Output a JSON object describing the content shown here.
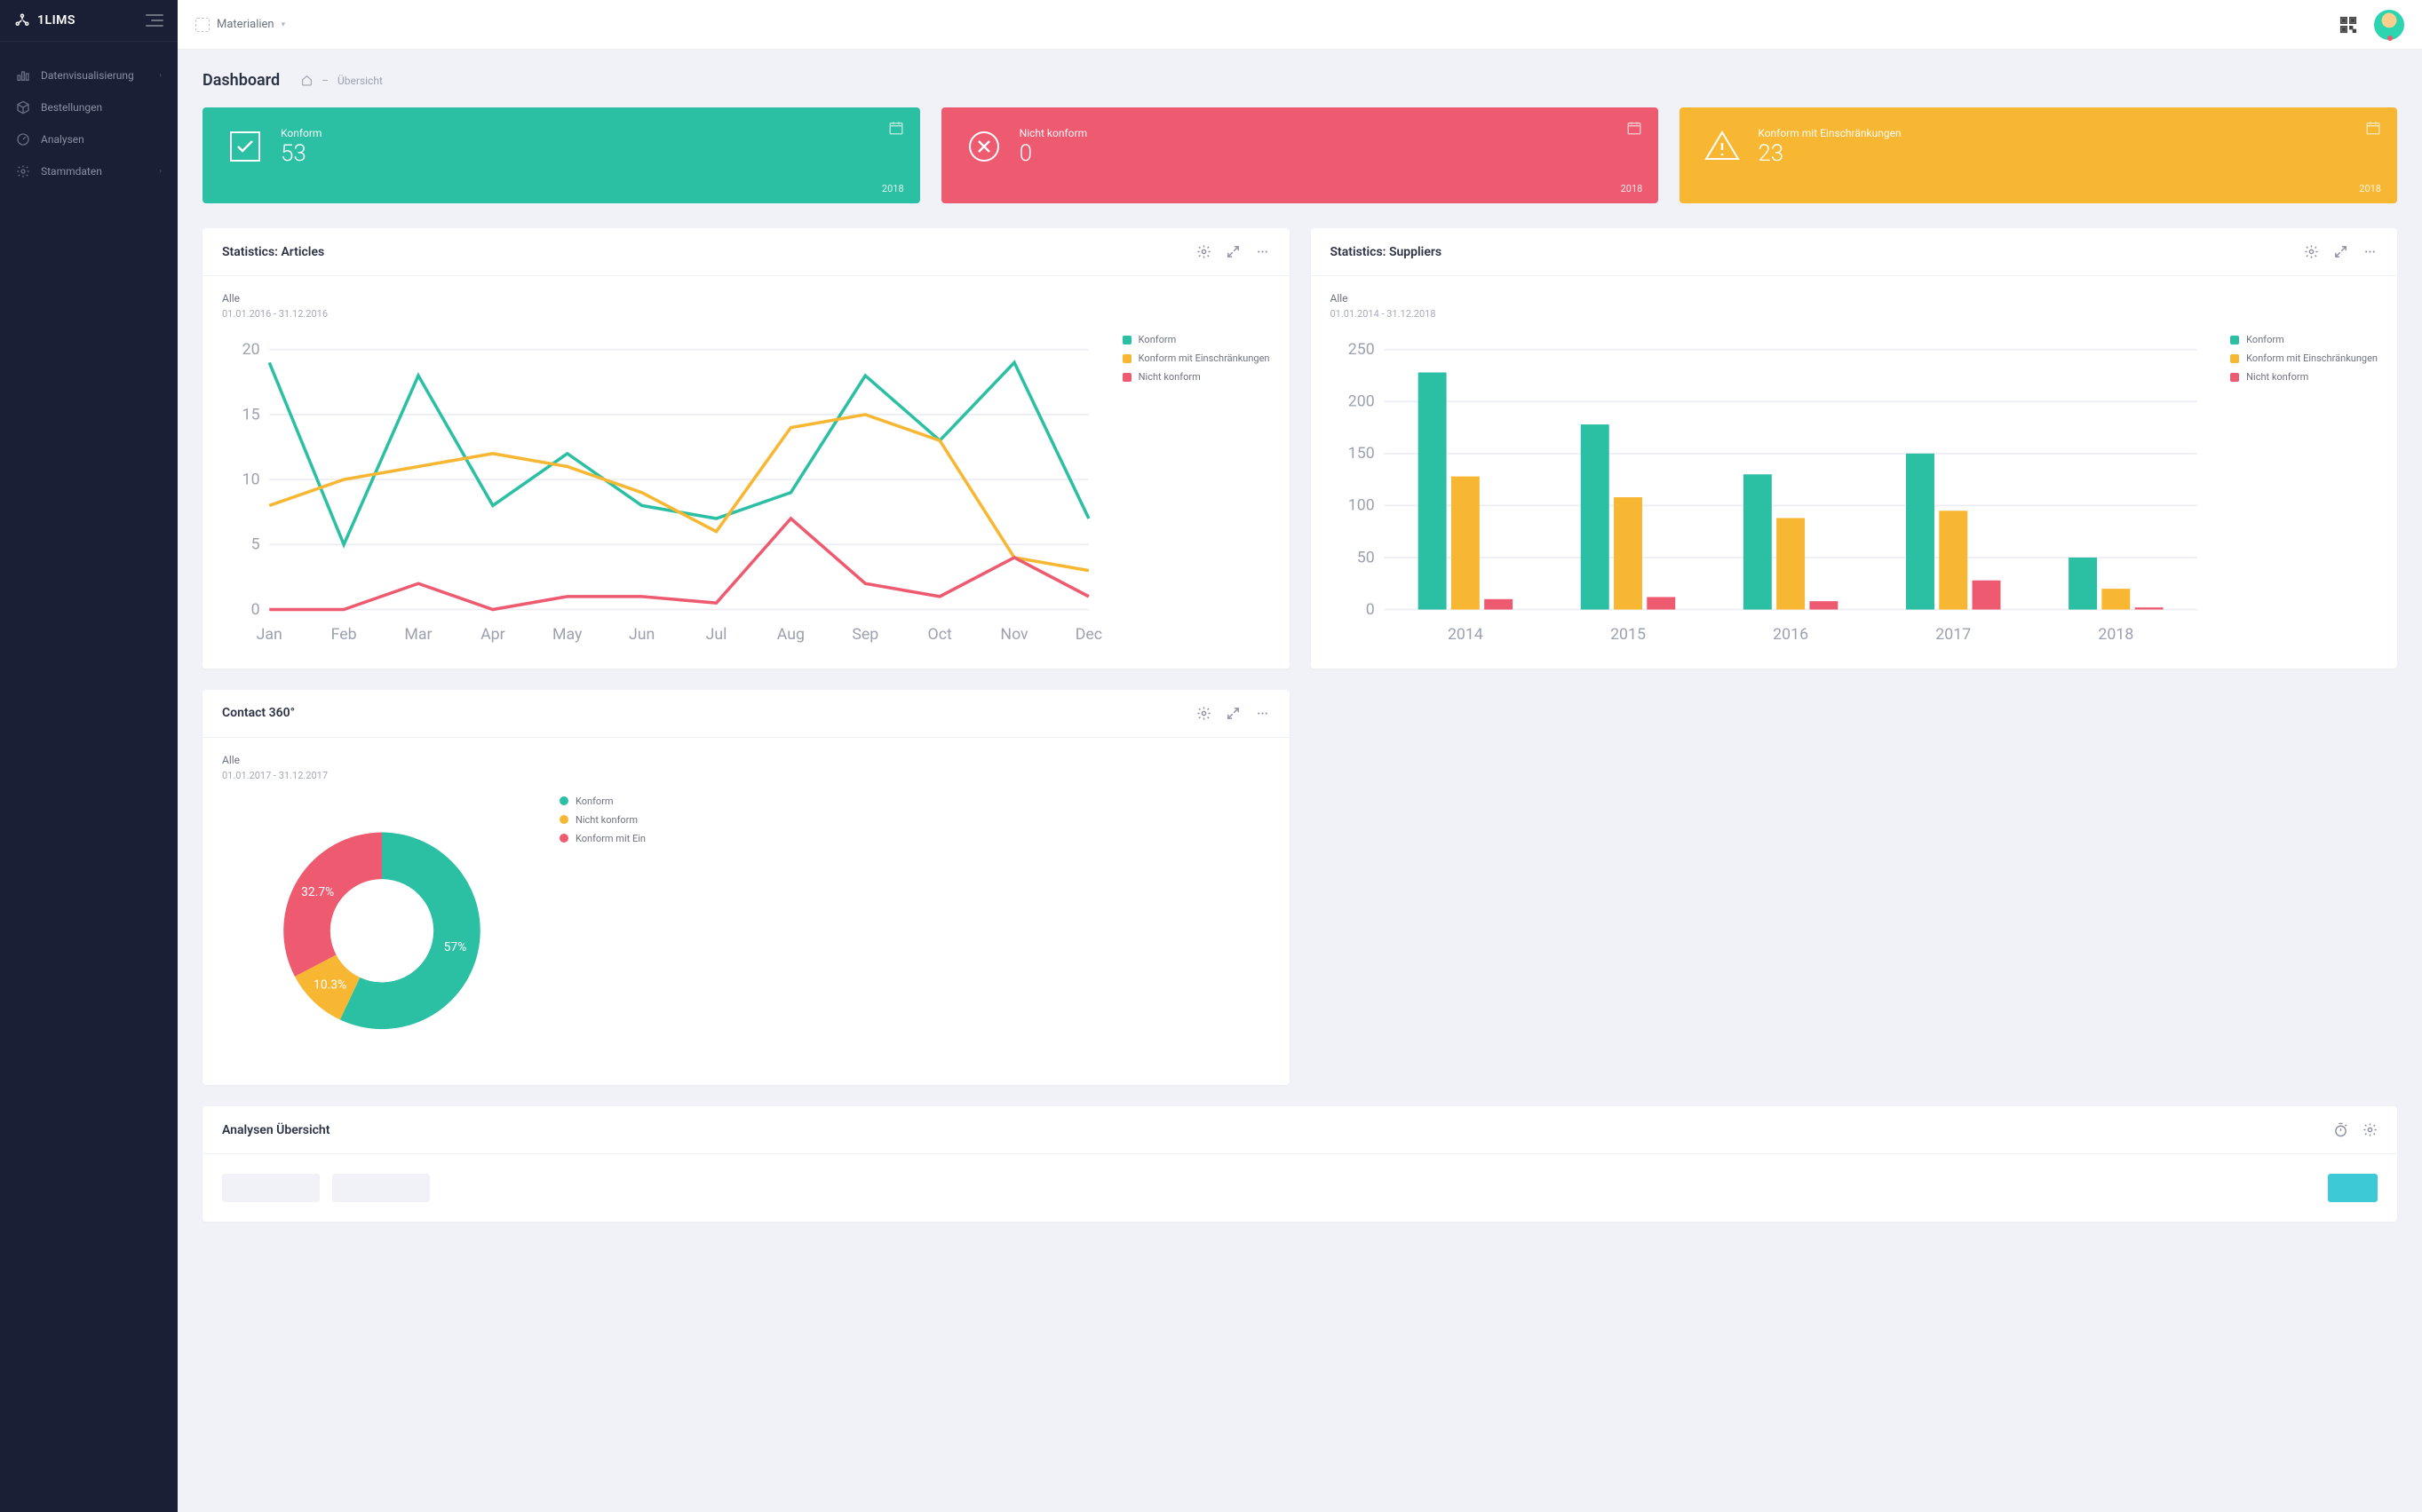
{
  "brand": "1LIMS",
  "topbar": {
    "material_label": "Materialien"
  },
  "sidebar": {
    "items": [
      {
        "label": "Datenvisualisierung",
        "icon": "chart"
      },
      {
        "label": "Bestellungen",
        "icon": "box"
      },
      {
        "label": "Analysen",
        "icon": "gauge"
      },
      {
        "label": "Stammdaten",
        "icon": "gear"
      }
    ]
  },
  "page": {
    "title": "Dashboard",
    "breadcrumb_current": "Übersicht",
    "breadcrumb_sep": "–"
  },
  "colors": {
    "green": "#2bbfa3",
    "red": "#ee5a6f",
    "yellow": "#f7b733",
    "grid": "#eceef3",
    "axis": "#9ca1b0"
  },
  "stats": [
    {
      "label": "Konform",
      "value": "53",
      "year": "2018",
      "color": "#2bbfa3",
      "icon": "check"
    },
    {
      "label": "Nicht konform",
      "value": "0",
      "year": "2018",
      "color": "#ee5a6f",
      "icon": "cross"
    },
    {
      "label": "Konform mit Einschränkungen",
      "value": "23",
      "year": "2018",
      "color": "#f7b733",
      "icon": "warn"
    }
  ],
  "articles_chart": {
    "title": "Statistics: Articles",
    "filter": "Alle",
    "range": "01.01.2016 - 31.12.2016",
    "type": "line",
    "x_labels": [
      "Jan",
      "Feb",
      "Mar",
      "Apr",
      "May",
      "Jun",
      "Jul",
      "Aug",
      "Sep",
      "Oct",
      "Nov",
      "Dec"
    ],
    "y_ticks": [
      0,
      5,
      10,
      15,
      20
    ],
    "ylim": [
      0,
      20
    ],
    "series": [
      {
        "name": "Konform",
        "color": "#2bbfa3",
        "values": [
          19,
          5,
          18,
          8,
          12,
          8,
          7,
          9,
          18,
          13,
          19,
          7
        ]
      },
      {
        "name": "Konform mit Einschränkungen",
        "color": "#f7b733",
        "values": [
          8,
          10,
          11,
          12,
          11,
          9,
          6,
          14,
          15,
          13,
          4,
          3
        ]
      },
      {
        "name": "Nicht konform",
        "color": "#ee5a6f",
        "values": [
          0,
          0,
          2,
          0,
          1,
          1,
          0.5,
          7,
          2,
          1,
          4,
          1
        ]
      }
    ]
  },
  "suppliers_chart": {
    "title": "Statistics: Suppliers",
    "filter": "Alle",
    "range": "01.01.2014 - 31.12.2018",
    "type": "bar",
    "x_labels": [
      "2014",
      "2015",
      "2016",
      "2017",
      "2018"
    ],
    "y_ticks": [
      0,
      50,
      100,
      150,
      200,
      250
    ],
    "ylim": [
      0,
      250
    ],
    "groups": [
      {
        "name": "Konform",
        "color": "#2bbfa3",
        "values": [
          228,
          178,
          130,
          150,
          50
        ]
      },
      {
        "name": "Konform mit Einschränkungen",
        "color": "#f7b733",
        "values": [
          128,
          108,
          88,
          95,
          20
        ]
      },
      {
        "name": "Nicht konform",
        "color": "#ee5a6f",
        "values": [
          10,
          12,
          8,
          28,
          2
        ]
      }
    ]
  },
  "contact_chart": {
    "title": "Contact 360°",
    "filter": "Alle",
    "range": "01.01.2017 - 31.12.2017",
    "type": "donut",
    "slices": [
      {
        "name": "Konform",
        "color": "#2bbfa3",
        "pct": 57,
        "label": "57%"
      },
      {
        "name": "Nicht konform",
        "color": "#f7b733",
        "pct": 10.3,
        "label": "10.3%"
      },
      {
        "name": "Konform mit Ein",
        "color": "#ee5a6f",
        "pct": 32.7,
        "label": "32.7%"
      }
    ]
  },
  "analysen_panel": {
    "title": "Analysen Übersicht"
  }
}
